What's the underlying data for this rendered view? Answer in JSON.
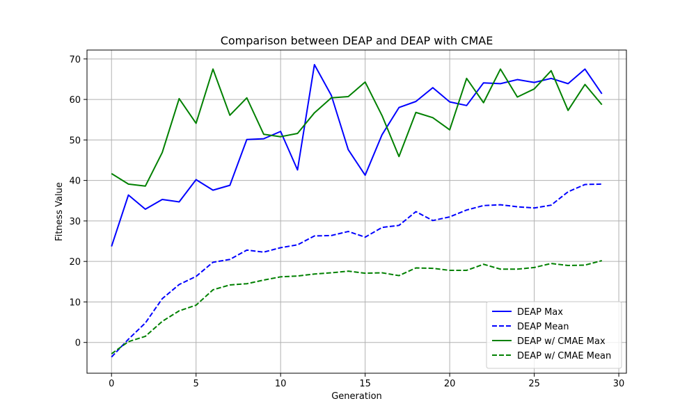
{
  "chart_data": {
    "type": "line",
    "title": "Comparison between DEAP and DEAP with CMAE",
    "xlabel": "Generation",
    "ylabel": "Fitness Value",
    "xlim": [
      -1.45,
      30.45
    ],
    "ylim": [
      -7.6,
      72.2
    ],
    "xticks": [
      0,
      5,
      10,
      15,
      20,
      25,
      30
    ],
    "yticks": [
      0,
      10,
      20,
      30,
      40,
      50,
      60,
      70
    ],
    "grid": true,
    "legend_position": "lower-right",
    "x": [
      0,
      1,
      2,
      3,
      4,
      5,
      6,
      7,
      8,
      9,
      10,
      11,
      12,
      13,
      14,
      15,
      16,
      17,
      18,
      19,
      20,
      21,
      22,
      23,
      24,
      25,
      26,
      27,
      28,
      29
    ],
    "series": [
      {
        "name": "DEAP Max",
        "color": "#0000ff",
        "style": "solid",
        "values": [
          23.7,
          36.4,
          32.9,
          35.3,
          34.7,
          40.2,
          37.6,
          38.8,
          50.1,
          50.3,
          52.1,
          42.6,
          68.6,
          61.0,
          47.6,
          41.3,
          51.3,
          58.0,
          59.5,
          62.9,
          59.4,
          58.5,
          64.1,
          63.9,
          64.9,
          64.2,
          65.2,
          63.9,
          67.5,
          61.4
        ]
      },
      {
        "name": "DEAP Mean",
        "color": "#0000ff",
        "style": "dashed",
        "values": [
          -3.6,
          0.8,
          4.8,
          10.8,
          14.3,
          16.3,
          19.8,
          20.5,
          22.8,
          22.3,
          23.4,
          24.1,
          26.3,
          26.4,
          27.4,
          26.0,
          28.4,
          28.9,
          32.3,
          30.1,
          31.0,
          32.7,
          33.8,
          34.0,
          33.5,
          33.2,
          33.9,
          37.2,
          39.0,
          39.1
        ]
      },
      {
        "name": "DEAP w/ CMAE Max",
        "color": "#008000",
        "style": "solid",
        "values": [
          41.7,
          39.1,
          38.6,
          46.9,
          60.2,
          54.1,
          67.5,
          56.1,
          60.4,
          51.4,
          50.8,
          51.6,
          56.7,
          60.4,
          60.7,
          64.3,
          56.0,
          45.9,
          56.8,
          55.5,
          52.5,
          65.2,
          59.2,
          67.5,
          60.6,
          62.6,
          67.1,
          57.3,
          63.7,
          58.7
        ]
      },
      {
        "name": "DEAP w/ CMAE Mean",
        "color": "#008000",
        "style": "dashed",
        "values": [
          -2.8,
          0.2,
          1.5,
          5.2,
          7.8,
          9.2,
          13.0,
          14.2,
          14.5,
          15.4,
          16.2,
          16.4,
          16.9,
          17.2,
          17.6,
          17.1,
          17.2,
          16.5,
          18.4,
          18.3,
          17.8,
          17.8,
          19.3,
          18.1,
          18.1,
          18.5,
          19.5,
          19.0,
          19.1,
          20.2
        ]
      }
    ]
  }
}
